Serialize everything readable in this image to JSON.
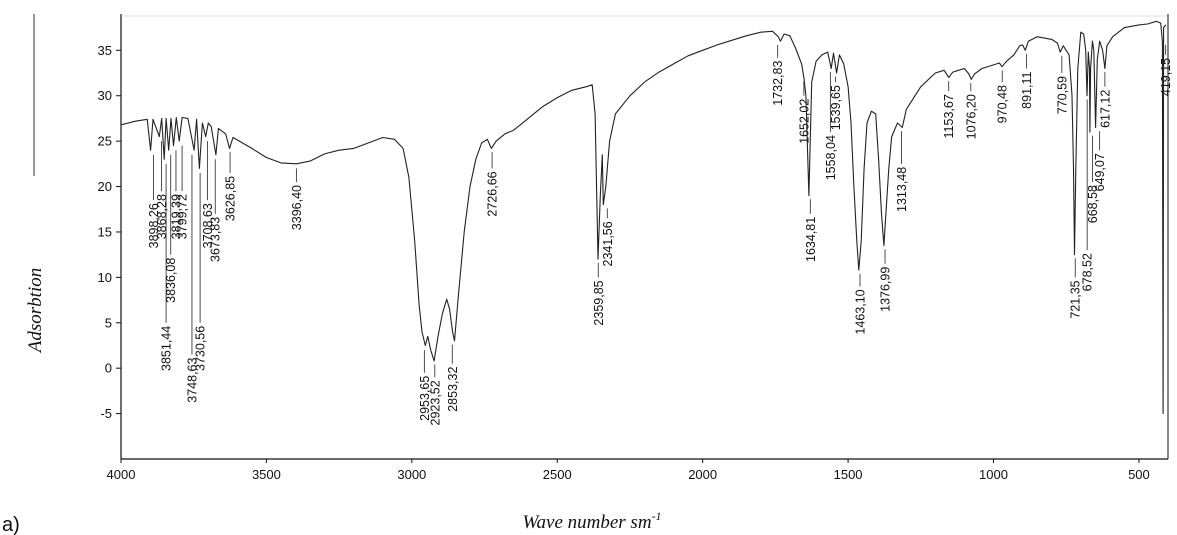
{
  "chart_data": {
    "type": "line",
    "panel_label": "a)",
    "xlabel": "Wave number sm",
    "xlabel_sup": "-1",
    "ylabel": "Adsorbtion",
    "xlim": [
      4000,
      400
    ],
    "ylim": [
      -10,
      39
    ],
    "x_ticks": [
      4000,
      3500,
      3000,
      2500,
      2000,
      1500,
      1000,
      500
    ],
    "y_ticks": [
      -5,
      0,
      5,
      10,
      15,
      20,
      25,
      30,
      35
    ],
    "grid": false,
    "series": [
      {
        "points": [
          [
            4000,
            26.8
          ],
          [
            3950,
            27.2
          ],
          [
            3910,
            27.4
          ],
          [
            3898.26,
            24.0
          ],
          [
            3890,
            27.4
          ],
          [
            3868.28,
            25.5
          ],
          [
            3860,
            27.5
          ],
          [
            3851.44,
            23.0
          ],
          [
            3845,
            27.5
          ],
          [
            3836.08,
            24.0
          ],
          [
            3828,
            27.5
          ],
          [
            3819.39,
            24.5
          ],
          [
            3810,
            27.6
          ],
          [
            3799.72,
            25.0
          ],
          [
            3790,
            27.6
          ],
          [
            3770,
            27.5
          ],
          [
            3748.63,
            24.0
          ],
          [
            3740,
            27.4
          ],
          [
            3730.56,
            22.0
          ],
          [
            3720,
            27.0
          ],
          [
            3708.63,
            25.5
          ],
          [
            3700,
            27.0
          ],
          [
            3690,
            26.6
          ],
          [
            3673.83,
            23.5
          ],
          [
            3665,
            26.4
          ],
          [
            3640,
            25.8
          ],
          [
            3626.85,
            24.2
          ],
          [
            3615,
            25.4
          ],
          [
            3550,
            24.2
          ],
          [
            3500,
            23.2
          ],
          [
            3450,
            22.6
          ],
          [
            3396.4,
            22.5
          ],
          [
            3350,
            22.8
          ],
          [
            3300,
            23.6
          ],
          [
            3250,
            24.0
          ],
          [
            3200,
            24.2
          ],
          [
            3150,
            24.8
          ],
          [
            3100,
            25.4
          ],
          [
            3060,
            25.2
          ],
          [
            3030,
            24.2
          ],
          [
            3010,
            21.0
          ],
          [
            2990,
            14.0
          ],
          [
            2975,
            7.0
          ],
          [
            2965,
            4.0
          ],
          [
            2953.65,
            2.5
          ],
          [
            2945,
            3.5
          ],
          [
            2935,
            2.0
          ],
          [
            2923.52,
            0.8
          ],
          [
            2910,
            3.5
          ],
          [
            2895,
            6.0
          ],
          [
            2880,
            7.6
          ],
          [
            2870,
            6.5
          ],
          [
            2860,
            4.0
          ],
          [
            2853.32,
            3.0
          ],
          [
            2840,
            8.0
          ],
          [
            2820,
            15.0
          ],
          [
            2800,
            20.0
          ],
          [
            2780,
            23.0
          ],
          [
            2760,
            24.8
          ],
          [
            2740,
            25.2
          ],
          [
            2726.66,
            24.2
          ],
          [
            2710,
            25.0
          ],
          [
            2680,
            25.8
          ],
          [
            2650,
            26.2
          ],
          [
            2600,
            27.5
          ],
          [
            2550,
            28.8
          ],
          [
            2500,
            29.8
          ],
          [
            2450,
            30.6
          ],
          [
            2400,
            31.0
          ],
          [
            2380,
            31.2
          ],
          [
            2370,
            28.0
          ],
          [
            2359.85,
            12.0
          ],
          [
            2352,
            19.0
          ],
          [
            2345,
            23.5
          ],
          [
            2341.56,
            18.0
          ],
          [
            2333,
            20.0
          ],
          [
            2320,
            25.0
          ],
          [
            2300,
            28.0
          ],
          [
            2250,
            30.0
          ],
          [
            2200,
            31.5
          ],
          [
            2150,
            32.6
          ],
          [
            2100,
            33.5
          ],
          [
            2050,
            34.4
          ],
          [
            2000,
            35.0
          ],
          [
            1950,
            35.6
          ],
          [
            1900,
            36.1
          ],
          [
            1850,
            36.6
          ],
          [
            1800,
            37.0
          ],
          [
            1760,
            37.1
          ],
          [
            1740,
            36.5
          ],
          [
            1732.83,
            36.0
          ],
          [
            1720,
            36.8
          ],
          [
            1700,
            36.6
          ],
          [
            1680,
            35.2
          ],
          [
            1660,
            33.5
          ],
          [
            1652.02,
            32.0
          ],
          [
            1645,
            30.0
          ],
          [
            1634.81,
            19.0
          ],
          [
            1625,
            31.5
          ],
          [
            1610,
            33.8
          ],
          [
            1590,
            34.5
          ],
          [
            1570,
            34.8
          ],
          [
            1558.04,
            33.0
          ],
          [
            1550,
            34.7
          ],
          [
            1539.65,
            32.5
          ],
          [
            1530,
            34.5
          ],
          [
            1515,
            33.5
          ],
          [
            1500,
            31.0
          ],
          [
            1490,
            27.0
          ],
          [
            1480,
            20.0
          ],
          [
            1470,
            14.0
          ],
          [
            1463.1,
            10.8
          ],
          [
            1455,
            14.0
          ],
          [
            1445,
            22.0
          ],
          [
            1435,
            27.0
          ],
          [
            1420,
            28.3
          ],
          [
            1405,
            28.0
          ],
          [
            1395,
            23.0
          ],
          [
            1385,
            17.0
          ],
          [
            1376.99,
            13.5
          ],
          [
            1370,
            17.0
          ],
          [
            1360,
            22.0
          ],
          [
            1350,
            25.5
          ],
          [
            1330,
            27.0
          ],
          [
            1313.48,
            26.5
          ],
          [
            1300,
            28.5
          ],
          [
            1280,
            29.5
          ],
          [
            1250,
            31.0
          ],
          [
            1200,
            32.5
          ],
          [
            1170,
            32.8
          ],
          [
            1153.67,
            32.0
          ],
          [
            1140,
            32.6
          ],
          [
            1120,
            32.8
          ],
          [
            1100,
            33.0
          ],
          [
            1085,
            32.4
          ],
          [
            1076.2,
            31.8
          ],
          [
            1065,
            32.4
          ],
          [
            1040,
            33.0
          ],
          [
            1000,
            33.4
          ],
          [
            980,
            33.6
          ],
          [
            970.48,
            33.2
          ],
          [
            955,
            33.8
          ],
          [
            930,
            34.5
          ],
          [
            910,
            35.5
          ],
          [
            900,
            35.6
          ],
          [
            891.11,
            35.0
          ],
          [
            880,
            36.0
          ],
          [
            850,
            36.5
          ],
          [
            800,
            36.2
          ],
          [
            780,
            35.8
          ],
          [
            770.59,
            34.8
          ],
          [
            760,
            35.5
          ],
          [
            740,
            34.5
          ],
          [
            730,
            30.0
          ],
          [
            725,
            22.0
          ],
          [
            721.35,
            12.5
          ],
          [
            717,
            22.0
          ],
          [
            710,
            33.0
          ],
          [
            700,
            37.0
          ],
          [
            690,
            36.8
          ],
          [
            683,
            35.0
          ],
          [
            678.52,
            30.0
          ],
          [
            674,
            34.8
          ],
          [
            670,
            33.0
          ],
          [
            668.58,
            26.0
          ],
          [
            666,
            33.0
          ],
          [
            660,
            36.0
          ],
          [
            655,
            35.0
          ],
          [
            649.07,
            26.5
          ],
          [
            643,
            34.0
          ],
          [
            635,
            36.0
          ],
          [
            625,
            35.0
          ],
          [
            617.12,
            33.0
          ],
          [
            610,
            35.5
          ],
          [
            590,
            36.5
          ],
          [
            550,
            37.5
          ],
          [
            500,
            37.8
          ],
          [
            470,
            37.9
          ],
          [
            440,
            38.2
          ],
          [
            425,
            38.0
          ],
          [
            419.15,
            36.0
          ],
          [
            417,
            -5.0
          ],
          [
            415,
            37.5
          ],
          [
            408,
            37.8
          ]
        ]
      }
    ],
    "annotations": [
      {
        "label": "3898,26",
        "x": 3898.26,
        "lx": 3888,
        "ytop": 23.5,
        "yend": 18.5
      },
      {
        "label": "3868,28",
        "x": 3868.28,
        "lx": 3861,
        "ytop": 25.0,
        "yend": 19.5
      },
      {
        "label": "3851,44",
        "x": 3851.44,
        "lx": 3845,
        "ytop": 22.5,
        "yend": 5.0
      },
      {
        "label": "3836,08",
        "x": 3836.08,
        "lx": 3829,
        "ytop": 23.5,
        "yend": 12.5
      },
      {
        "label": "3819,39",
        "x": 3819.39,
        "lx": 3811,
        "ytop": 24.0,
        "yend": 19.5
      },
      {
        "label": "3799,72",
        "x": 3799.72,
        "lx": 3790,
        "ytop": 24.5,
        "yend": 19.5
      },
      {
        "label": "3748,63",
        "x": 3748.63,
        "lx": 3756,
        "ytop": 23.5,
        "yend": 1.5
      },
      {
        "label": "3730,56",
        "x": 3730.56,
        "lx": 3728,
        "ytop": 21.5,
        "yend": 5.0
      },
      {
        "label": "3708,63",
        "x": 3708.63,
        "lx": 3703,
        "ytop": 25.0,
        "yend": 18.5
      },
      {
        "label": "3673,83",
        "x": 3673.83,
        "lx": 3676,
        "ytop": 23.0,
        "yend": 17.0
      },
      {
        "label": "3626,85",
        "x": 3626.85,
        "lx": 3625,
        "ytop": 23.8,
        "yend": 21.5
      },
      {
        "label": "3396,40",
        "x": 3396.4,
        "lx": 3397,
        "ytop": 22.0,
        "yend": 20.5
      },
      {
        "label": "2953,65",
        "x": 2953.65,
        "lx": 2957,
        "ytop": 2.0,
        "yend": -0.5
      },
      {
        "label": "2923,52",
        "x": 2923.52,
        "lx": 2921,
        "ytop": 0.4,
        "yend": -1.0
      },
      {
        "label": "2853,32",
        "x": 2853.32,
        "lx": 2861,
        "ytop": 2.6,
        "yend": 0.5
      },
      {
        "label": "2726,66",
        "x": 2726.66,
        "lx": 2724,
        "ytop": 23.8,
        "yend": 22.0
      },
      {
        "label": "2359,85",
        "x": 2359.85,
        "lx": 2359,
        "ytop": 11.6,
        "yend": 10.0
      },
      {
        "label": "2341,56",
        "x": 2341.56,
        "lx": 2328,
        "ytop": 17.6,
        "yend": 16.5
      },
      {
        "label": "1732,83",
        "x": 1732.83,
        "lx": 1742,
        "ytop": 35.6,
        "yend": 34.2
      },
      {
        "label": "1652,02",
        "x": 1652.02,
        "lx": 1652,
        "ytop": 31.6,
        "yend": 30.0
      },
      {
        "label": "1634,81",
        "x": 1634.81,
        "lx": 1630,
        "ytop": 18.6,
        "yend": 17.0
      },
      {
        "label": "1558,04",
        "x": 1558.04,
        "lx": 1561,
        "ytop": 32.6,
        "yend": 26.0
      },
      {
        "label": "1539,65",
        "x": 1539.65,
        "lx": 1543,
        "ytop": 32.1,
        "yend": 31.5
      },
      {
        "label": "1463,10",
        "x": 1463.1,
        "lx": 1459,
        "ytop": 10.4,
        "yend": 9.0
      },
      {
        "label": "1376,99",
        "x": 1376.99,
        "lx": 1373,
        "ytop": 13.1,
        "yend": 11.5
      },
      {
        "label": "1313,48",
        "x": 1313.48,
        "lx": 1316,
        "ytop": 26.1,
        "yend": 22.5
      },
      {
        "label": "1153,67",
        "x": 1153.67,
        "lx": 1154,
        "ytop": 31.6,
        "yend": 30.5
      },
      {
        "label": "1076,20",
        "x": 1076.2,
        "lx": 1078,
        "ytop": 31.4,
        "yend": 30.5
      },
      {
        "label": "970,48",
        "x": 970.48,
        "lx": 970,
        "ytop": 32.8,
        "yend": 31.5
      },
      {
        "label": "891,11",
        "x": 891.11,
        "lx": 887,
        "ytop": 34.6,
        "yend": 33.0
      },
      {
        "label": "770,59",
        "x": 770.59,
        "lx": 765,
        "ytop": 34.4,
        "yend": 32.5
      },
      {
        "label": "721,35",
        "x": 721.35,
        "lx": 719,
        "ytop": 12.1,
        "yend": 10.0
      },
      {
        "label": "678,52",
        "x": 678.52,
        "lx": 678,
        "ytop": 29.6,
        "yend": 13.0
      },
      {
        "label": "668,58",
        "x": 668.58,
        "lx": 660,
        "ytop": 25.6,
        "yend": 20.5
      },
      {
        "label": "649,07",
        "x": 649.07,
        "lx": 635,
        "ytop": 26.1,
        "yend": 24.0
      },
      {
        "label": "617,12",
        "x": 617.12,
        "lx": 617,
        "ytop": 32.6,
        "yend": 31.0
      },
      {
        "label": "419,15",
        "x": 419.15,
        "lx": 408,
        "ytop": 35.6,
        "yend": 34.5
      }
    ]
  }
}
